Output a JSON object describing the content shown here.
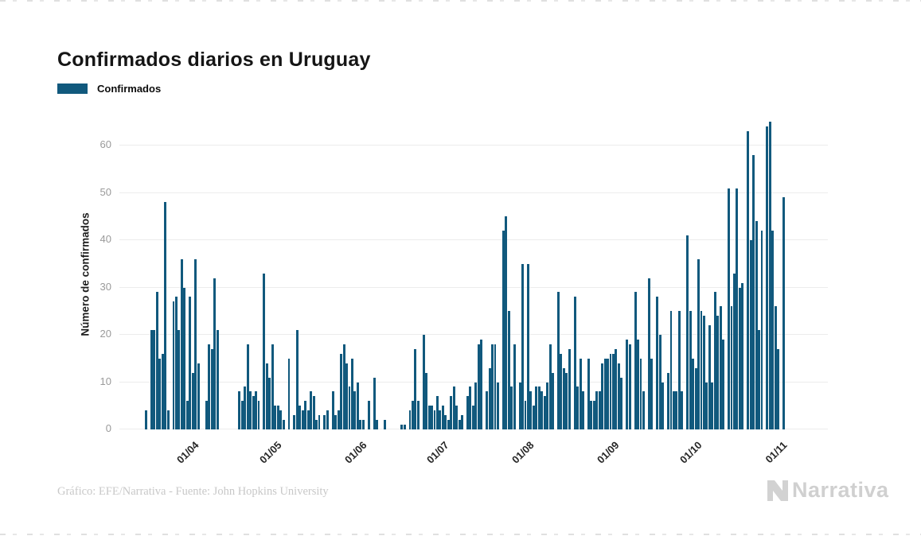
{
  "page": {
    "title": "Confirmados diarios en Uruguay"
  },
  "legend": {
    "label": "Confirmados",
    "color": "#11597d"
  },
  "chart_data": {
    "type": "bar",
    "title": "Confirmados diarios en Uruguay",
    "xlabel": "",
    "ylabel": "Número de confirmados",
    "ylim": [
      0,
      65.5
    ],
    "yticks": [
      0,
      10,
      20,
      30,
      40,
      50,
      60
    ],
    "grid": true,
    "legend_position": "top-left",
    "series_name": "Confirmados",
    "bar_color": "#11597d",
    "start_date": "15/03/2020",
    "end_date": "02/11/2020",
    "xticks": [
      {
        "label": "01/04",
        "index": 17
      },
      {
        "label": "01/05",
        "index": 47
      },
      {
        "label": "01/06",
        "index": 78
      },
      {
        "label": "01/07",
        "index": 108
      },
      {
        "label": "01/08",
        "index": 139
      },
      {
        "label": "01/09",
        "index": 170
      },
      {
        "label": "01/10",
        "index": 200
      },
      {
        "label": "01/11",
        "index": 231
      }
    ],
    "values": [
      4,
      0,
      21,
      21,
      29,
      15,
      16,
      48,
      4,
      0,
      27,
      28,
      21,
      36,
      30,
      6,
      28,
      12,
      36,
      14,
      0,
      0,
      6,
      18,
      17,
      32,
      21,
      0,
      0,
      0,
      0,
      0,
      0,
      0,
      8,
      6,
      9,
      18,
      8,
      7,
      8,
      6,
      0,
      33,
      14,
      11,
      18,
      5,
      5,
      4,
      2,
      0,
      15,
      0,
      3,
      21,
      5,
      4,
      6,
      4,
      8,
      7,
      2,
      3,
      0,
      3,
      4,
      0,
      8,
      3,
      4,
      16,
      18,
      14,
      9,
      15,
      8,
      10,
      2,
      2,
      0,
      6,
      0,
      11,
      2,
      0,
      0,
      2,
      0,
      0,
      0,
      0,
      0,
      1,
      1,
      0,
      4,
      6,
      17,
      6,
      0,
      20,
      12,
      5,
      5,
      4,
      7,
      4,
      5,
      3,
      2,
      7,
      9,
      5,
      2,
      3,
      0,
      7,
      9,
      5,
      10,
      18,
      19,
      0,
      8,
      13,
      18,
      18,
      10,
      0,
      42,
      45,
      25,
      9,
      18,
      0,
      10,
      35,
      6,
      35,
      8,
      5,
      9,
      9,
      8,
      7,
      10,
      18,
      12,
      0,
      29,
      16,
      13,
      12,
      17,
      0,
      28,
      9,
      15,
      8,
      0,
      15,
      6,
      6,
      8,
      8,
      14,
      15,
      15,
      16,
      16,
      17,
      14,
      11,
      0,
      19,
      18,
      0,
      29,
      19,
      15,
      8,
      0,
      32,
      15,
      0,
      28,
      20,
      10,
      0,
      12,
      25,
      8,
      8,
      25,
      8,
      0,
      41,
      25,
      15,
      13,
      36,
      25,
      24,
      10,
      22,
      10,
      29,
      24,
      26,
      19,
      0,
      51,
      26,
      33,
      51,
      30,
      31,
      0,
      63,
      40,
      58,
      44,
      21,
      42,
      0,
      64,
      65,
      42,
      26,
      17,
      0,
      49
    ]
  },
  "footer": {
    "credit": "Gráfico: EFE/Narrativa - Fuente: John Hopkins University",
    "brand": "Narrativa"
  }
}
